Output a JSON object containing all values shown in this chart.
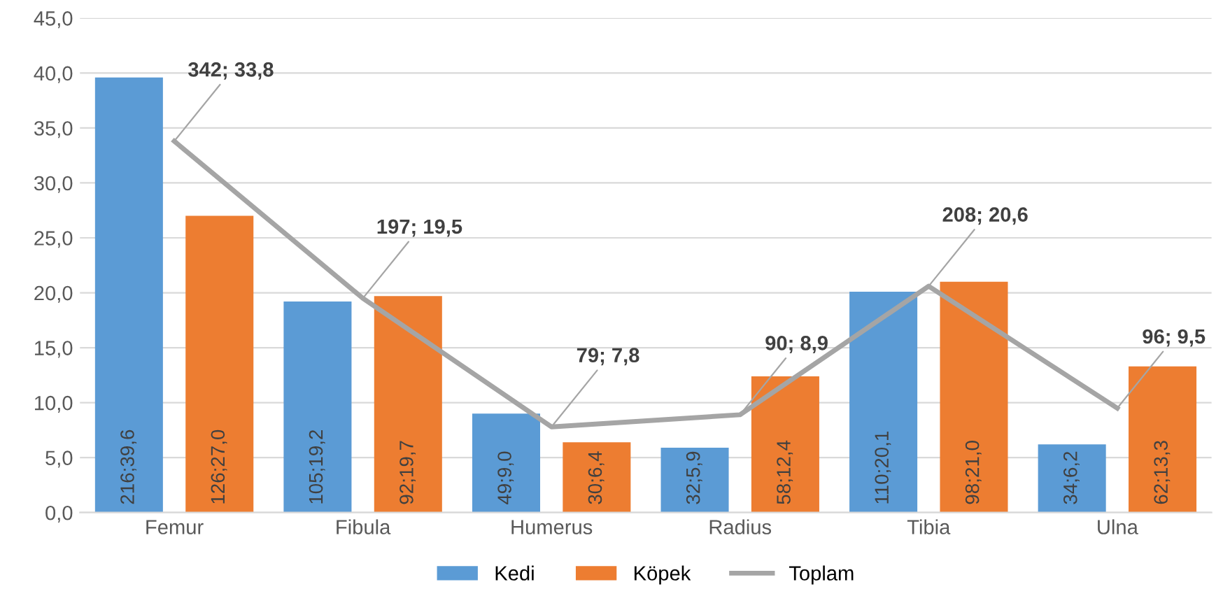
{
  "chart_data": {
    "type": "bar",
    "categories": [
      "Femur",
      "Fibula",
      "Humerus",
      "Radius",
      "Tibia",
      "Ulna"
    ],
    "series": [
      {
        "name": "Kedi",
        "color": "#5b9bd5",
        "values": [
          39.6,
          19.2,
          9.0,
          5.9,
          20.1,
          6.2
        ],
        "value_labels": [
          "216;39,6",
          "105;19,2",
          "49;9,0",
          "32;5,9",
          "110;20,1",
          "34;6,2"
        ]
      },
      {
        "name": "Köpek",
        "color": "#ed7d31",
        "values": [
          27.0,
          19.7,
          6.4,
          12.4,
          21.0,
          13.3
        ],
        "value_labels": [
          "126;27,0",
          "92;19,7",
          "30;6,4",
          "58;12,4",
          "98;21,0",
          "62;13,3"
        ]
      },
      {
        "name": "Toplam",
        "type": "line",
        "color": "#a5a5a5",
        "values": [
          33.8,
          19.5,
          7.8,
          8.9,
          20.6,
          9.5
        ],
        "value_labels": [
          "342; 33,8",
          "197; 19,5",
          "79; 7,8",
          "90; 8,9",
          "208; 20,6",
          "96; 9,5"
        ]
      }
    ],
    "ylim": [
      0,
      45
    ],
    "yticks": [
      {
        "value": 0,
        "label": "0,0"
      },
      {
        "value": 5,
        "label": "5,0"
      },
      {
        "value": 10,
        "label": "10,0"
      },
      {
        "value": 15,
        "label": "15,0"
      },
      {
        "value": 20,
        "label": "20,0"
      },
      {
        "value": 25,
        "label": "25,0"
      },
      {
        "value": 30,
        "label": "30,0"
      },
      {
        "value": 35,
        "label": "35,0"
      },
      {
        "value": 40,
        "label": "40,0"
      },
      {
        "value": 45,
        "label": "45,0"
      }
    ],
    "grid": "y",
    "legend": "bottom",
    "marker": "none",
    "line_style": "solid"
  }
}
